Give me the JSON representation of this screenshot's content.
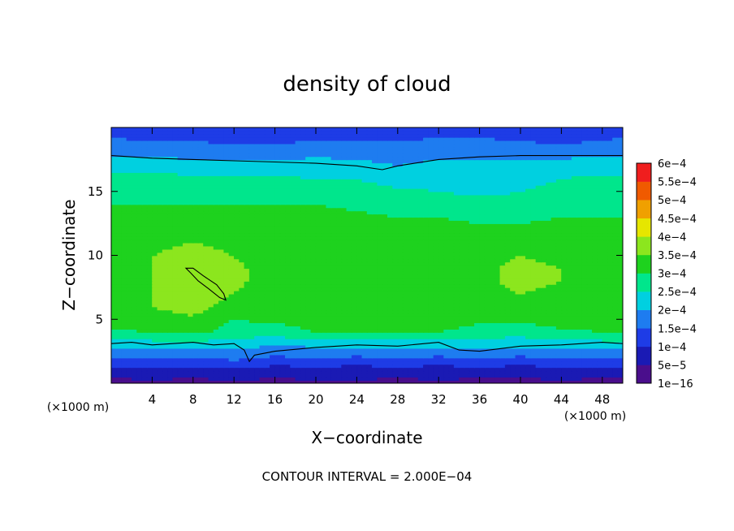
{
  "chart_data": {
    "type": "heatmap",
    "title": "density of cloud",
    "xlabel": "X−coordinate",
    "ylabel": "Z−coordinate",
    "x_unit_left": "(×1000 m)",
    "x_unit_right": "(×1000 m)",
    "xlim": [
      0,
      50
    ],
    "ylim": [
      0,
      20
    ],
    "x_ticks": [
      4,
      8,
      12,
      16,
      20,
      24,
      28,
      32,
      36,
      40,
      44,
      48
    ],
    "y_ticks": [
      5,
      10,
      15
    ],
    "colorbar": {
      "labels": [
        "1e−16",
        "5e−5",
        "1e−4",
        "1.5e−4",
        "2e−4",
        "2.5e−4",
        "3e−4",
        "3.5e−4",
        "4e−4",
        "4.5e−4",
        "5e−4",
        "5.5e−4",
        "6e−4"
      ],
      "colors": [
        "#4a0e8c",
        "#1a1ab4",
        "#1e3ce6",
        "#1e7cf0",
        "#00d0e0",
        "#00e68c",
        "#1ed21e",
        "#8ce61e",
        "#e6e600",
        "#f0a000",
        "#f05a00",
        "#f01e1e",
        "#f08c8c"
      ]
    },
    "field": {
      "x": [
        0,
        4,
        8,
        12,
        16,
        20,
        24,
        28,
        32,
        36,
        40,
        44,
        48,
        50
      ],
      "z": [
        0,
        1,
        2,
        3,
        4,
        5,
        6,
        7,
        8,
        9,
        10,
        11,
        12,
        13,
        14,
        15,
        16,
        17,
        18,
        19,
        20
      ],
      "values_e4": [
        [
          0.3,
          0.4,
          0.3,
          0.4,
          0.3,
          0.4,
          0.4,
          0.3,
          0.4,
          0.3,
          0.3,
          0.4,
          0.3,
          0.3
        ],
        [
          0.7,
          0.8,
          0.7,
          0.9,
          0.7,
          0.8,
          0.7,
          0.8,
          0.7,
          0.8,
          0.7,
          0.8,
          0.7,
          0.7
        ],
        [
          1.5,
          1.6,
          1.5,
          1.6,
          1.4,
          1.5,
          1.4,
          1.5,
          1.4,
          1.5,
          1.4,
          1.5,
          1.5,
          1.5
        ],
        [
          2.2,
          2.2,
          2.2,
          2.2,
          2.0,
          2.1,
          2.1,
          2.1,
          2.1,
          2.1,
          2.1,
          2.2,
          2.2,
          2.2
        ],
        [
          2.9,
          3.0,
          3.1,
          2.8,
          2.7,
          3.0,
          3.0,
          3.0,
          3.0,
          2.8,
          2.7,
          2.9,
          3.0,
          3.0
        ],
        [
          3.2,
          3.3,
          3.4,
          3.0,
          3.1,
          3.3,
          3.3,
          3.3,
          3.2,
          3.1,
          3.1,
          3.2,
          3.2,
          3.2
        ],
        [
          3.3,
          3.5,
          3.7,
          3.3,
          3.2,
          3.3,
          3.4,
          3.4,
          3.3,
          3.3,
          3.3,
          3.3,
          3.3,
          3.2
        ],
        [
          3.3,
          3.5,
          3.8,
          3.5,
          3.2,
          3.3,
          3.4,
          3.4,
          3.3,
          3.4,
          3.5,
          3.4,
          3.3,
          3.2
        ],
        [
          3.3,
          3.5,
          3.9,
          3.6,
          3.3,
          3.3,
          3.3,
          3.4,
          3.3,
          3.4,
          3.6,
          3.5,
          3.3,
          3.2
        ],
        [
          3.3,
          3.5,
          3.8,
          3.6,
          3.3,
          3.3,
          3.3,
          3.4,
          3.3,
          3.4,
          3.6,
          3.5,
          3.3,
          3.2
        ],
        [
          3.3,
          3.5,
          3.7,
          3.5,
          3.3,
          3.3,
          3.3,
          3.3,
          3.3,
          3.4,
          3.5,
          3.4,
          3.3,
          3.2
        ],
        [
          3.2,
          3.4,
          3.5,
          3.4,
          3.3,
          3.4,
          3.3,
          3.3,
          3.3,
          3.3,
          3.3,
          3.3,
          3.2,
          3.1
        ],
        [
          3.2,
          3.3,
          3.4,
          3.3,
          3.3,
          3.4,
          3.3,
          3.2,
          3.2,
          3.1,
          3.1,
          3.2,
          3.1,
          3.1
        ],
        [
          3.1,
          3.2,
          3.2,
          3.2,
          3.2,
          3.2,
          3.1,
          3.0,
          3.0,
          2.9,
          2.9,
          3.0,
          3.0,
          3.0
        ],
        [
          3.0,
          3.0,
          3.0,
          3.0,
          3.0,
          3.0,
          2.9,
          2.8,
          2.8,
          2.7,
          2.7,
          2.8,
          2.9,
          2.9
        ],
        [
          2.8,
          2.8,
          2.8,
          2.8,
          2.8,
          2.8,
          2.7,
          2.6,
          2.5,
          2.4,
          2.5,
          2.6,
          2.7,
          2.7
        ],
        [
          2.6,
          2.6,
          2.6,
          2.6,
          2.6,
          2.5,
          2.5,
          2.3,
          2.3,
          2.3,
          2.4,
          2.5,
          2.6,
          2.6
        ],
        [
          2.4,
          2.4,
          2.3,
          2.3,
          2.2,
          2.2,
          2.1,
          2.0,
          2.1,
          2.2,
          2.2,
          2.3,
          2.3,
          2.3
        ],
        [
          1.9,
          1.8,
          1.8,
          1.8,
          1.8,
          1.9,
          1.9,
          1.9,
          1.9,
          1.8,
          1.7,
          1.8,
          1.9,
          1.9
        ],
        [
          1.6,
          1.5,
          1.5,
          1.4,
          1.4,
          1.5,
          1.5,
          1.5,
          1.6,
          1.6,
          1.5,
          1.4,
          1.5,
          1.6
        ],
        [
          1.1,
          1.1,
          1.1,
          1.1,
          1.1,
          1.1,
          1.1,
          1.1,
          1.1,
          1.1,
          1.1,
          1.1,
          1.1,
          1.1
        ]
      ]
    },
    "contour_2e4": {
      "top_x": [
        0,
        4,
        8,
        12,
        16,
        20,
        24,
        26.5,
        28,
        32,
        36,
        40,
        44,
        48,
        50
      ],
      "top_z": [
        17.8,
        17.6,
        17.5,
        17.4,
        17.3,
        17.2,
        17.0,
        16.7,
        17.0,
        17.5,
        17.7,
        17.8,
        17.8,
        17.8,
        17.8
      ],
      "bottom_x": [
        0,
        2,
        4,
        6,
        8,
        10,
        12,
        13,
        13.5,
        14,
        16,
        20,
        24,
        28,
        32,
        34,
        36,
        40,
        44,
        48,
        50
      ],
      "bottom_z": [
        3.1,
        3.2,
        3.0,
        3.1,
        3.2,
        3.0,
        3.1,
        2.6,
        1.7,
        2.2,
        2.5,
        2.8,
        3.0,
        2.9,
        3.2,
        2.6,
        2.5,
        2.9,
        3.0,
        3.2,
        3.1
      ]
    },
    "contour_4e4": {
      "x": [
        7.3,
        8.0,
        9.0,
        10.3,
        11.0,
        11.2,
        10.6,
        9.5,
        8.5,
        7.8,
        7.3
      ],
      "z": [
        9.0,
        9.0,
        8.4,
        7.7,
        7.0,
        6.5,
        6.7,
        7.4,
        8.0,
        8.6,
        9.0
      ]
    },
    "footer": "CONTOUR INTERVAL = 2.000E−04"
  }
}
